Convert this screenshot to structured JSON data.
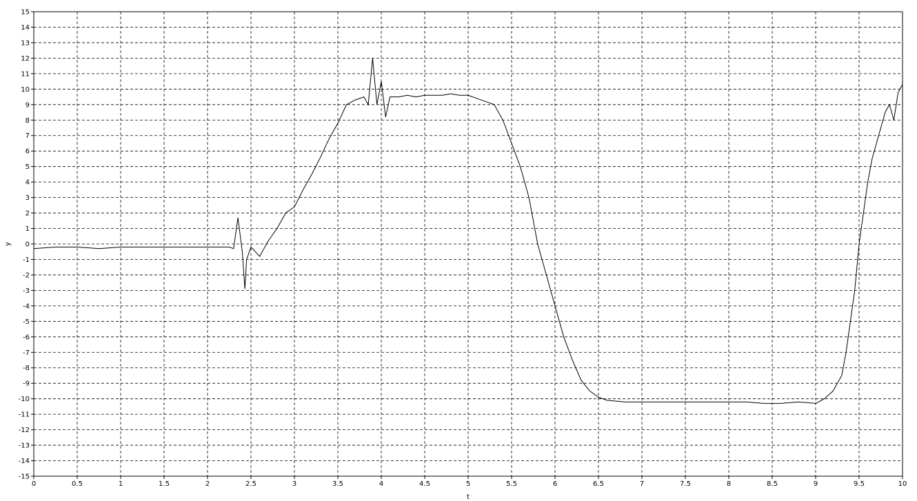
{
  "chart_data": {
    "type": "line",
    "title": "",
    "xlabel": "t",
    "ylabel": "y",
    "xlim": [
      0,
      10
    ],
    "ylim": [
      -15,
      15
    ],
    "x_ticks": [
      0,
      0.5,
      1,
      1.5,
      2,
      2.5,
      3,
      3.5,
      4,
      4.5,
      5,
      5.5,
      6,
      6.5,
      7,
      7.5,
      8,
      8.5,
      9,
      9.5,
      10
    ],
    "y_ticks": [
      -15,
      -14,
      -13,
      -12,
      -11,
      -10,
      -9,
      -8,
      -7,
      -6,
      -5,
      -4,
      -3,
      -2,
      -1,
      0,
      1,
      2,
      3,
      4,
      5,
      6,
      7,
      8,
      9,
      10,
      11,
      12,
      13,
      14,
      15
    ],
    "grid": true,
    "series": [
      {
        "color": "#000000",
        "x": [
          0,
          0.25,
          0.5,
          0.75,
          1.0,
          1.25,
          1.5,
          1.75,
          2.0,
          2.25,
          2.3,
          2.35,
          2.4,
          2.43,
          2.45,
          2.5,
          2.55,
          2.6,
          2.7,
          2.8,
          2.9,
          3.0,
          3.1,
          3.2,
          3.3,
          3.4,
          3.5,
          3.6,
          3.7,
          3.8,
          3.85,
          3.9,
          3.95,
          4.0,
          4.05,
          4.1,
          4.2,
          4.3,
          4.4,
          4.5,
          4.6,
          4.7,
          4.8,
          4.9,
          5.0,
          5.1,
          5.2,
          5.3,
          5.4,
          5.5,
          5.6,
          5.7,
          5.75,
          5.8,
          5.9,
          6.0,
          6.1,
          6.2,
          6.3,
          6.4,
          6.5,
          6.6,
          6.8,
          7.0,
          7.2,
          7.4,
          7.6,
          7.8,
          8.0,
          8.2,
          8.4,
          8.6,
          8.8,
          9.0,
          9.1,
          9.2,
          9.3,
          9.35,
          9.4,
          9.45,
          9.5,
          9.55,
          9.6,
          9.65,
          9.7,
          9.75,
          9.8,
          9.85,
          9.9,
          9.95,
          10.0
        ],
        "y": [
          -0.3,
          -0.2,
          -0.2,
          -0.3,
          -0.2,
          -0.2,
          -0.2,
          -0.2,
          -0.2,
          -0.2,
          -0.3,
          1.7,
          -0.5,
          -2.9,
          -1.0,
          -0.2,
          -0.5,
          -0.8,
          0.2,
          1.0,
          2.0,
          2.4,
          3.5,
          4.5,
          5.6,
          6.8,
          7.8,
          9.0,
          9.3,
          9.5,
          9.0,
          12.0,
          9.0,
          10.5,
          8.2,
          9.5,
          9.5,
          9.6,
          9.5,
          9.6,
          9.6,
          9.6,
          9.7,
          9.6,
          9.6,
          9.4,
          9.2,
          9.0,
          8.0,
          6.5,
          5.0,
          3.0,
          1.5,
          0.0,
          -2.0,
          -4.0,
          -6.0,
          -7.5,
          -8.8,
          -9.5,
          -9.9,
          -10.1,
          -10.2,
          -10.2,
          -10.2,
          -10.2,
          -10.2,
          -10.2,
          -10.2,
          -10.2,
          -10.3,
          -10.3,
          -10.2,
          -10.3,
          -10.0,
          -9.5,
          -8.5,
          -7.0,
          -5.0,
          -3.0,
          0.0,
          2.0,
          4.0,
          5.5,
          6.5,
          7.5,
          8.5,
          9.0,
          8.0,
          9.8,
          10.3
        ]
      }
    ]
  }
}
